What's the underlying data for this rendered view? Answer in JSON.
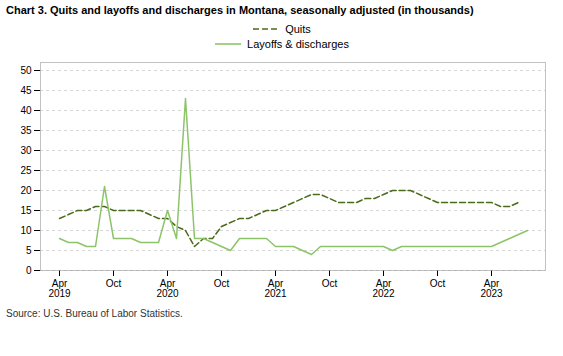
{
  "chart_data": {
    "type": "line",
    "title": "Chart 3. Quits and layoffs and discharges in Montana, seasonally adjusted (in thousands)",
    "source": "Source: U.S. Bureau of Labor Statistics.",
    "categories": [
      "Apr\n2019",
      null,
      null,
      null,
      null,
      null,
      "Oct",
      null,
      null,
      null,
      null,
      null,
      "Apr\n2020",
      null,
      null,
      null,
      null,
      null,
      "Oct",
      null,
      null,
      null,
      null,
      null,
      "Apr\n2021",
      null,
      null,
      null,
      null,
      null,
      "Oct",
      null,
      null,
      null,
      null,
      null,
      "Apr\n2022",
      null,
      null,
      null,
      null,
      null,
      "Oct",
      null,
      null,
      null,
      null,
      null,
      "Apr\n2023",
      null,
      null,
      null,
      null
    ],
    "series": [
      {
        "name": "Quits",
        "color": "#4a6b1a",
        "line_style": "dashed",
        "values": [
          13,
          14,
          15,
          15,
          16,
          16,
          15,
          15,
          15,
          15,
          14,
          13,
          13,
          11,
          10,
          6,
          8,
          8,
          11,
          12,
          13,
          13,
          14,
          15,
          15,
          16,
          17,
          18,
          19,
          19,
          18,
          17,
          17,
          17,
          18,
          18,
          19,
          20,
          20,
          20,
          19,
          18,
          17,
          17,
          17,
          17,
          17,
          17,
          17,
          16,
          16,
          17,
          null
        ]
      },
      {
        "name": "Layoffs & discharges",
        "color": "#8dc46a",
        "line_style": "solid",
        "values": [
          8,
          7,
          7,
          6,
          6,
          21,
          8,
          8,
          8,
          7,
          7,
          7,
          15,
          8,
          43,
          8,
          8,
          7,
          6,
          5,
          8,
          8,
          8,
          8,
          6,
          6,
          6,
          5,
          4,
          6,
          6,
          6,
          6,
          6,
          6,
          6,
          6,
          5,
          6,
          6,
          6,
          6,
          6,
          6,
          6,
          6,
          6,
          6,
          6,
          7,
          8,
          9,
          10
        ]
      }
    ],
    "ylim": [
      0,
      52
    ],
    "yticks": [
      0,
      5,
      10,
      15,
      20,
      25,
      30,
      35,
      40,
      45,
      50
    ],
    "grid": true,
    "legend": "top"
  }
}
